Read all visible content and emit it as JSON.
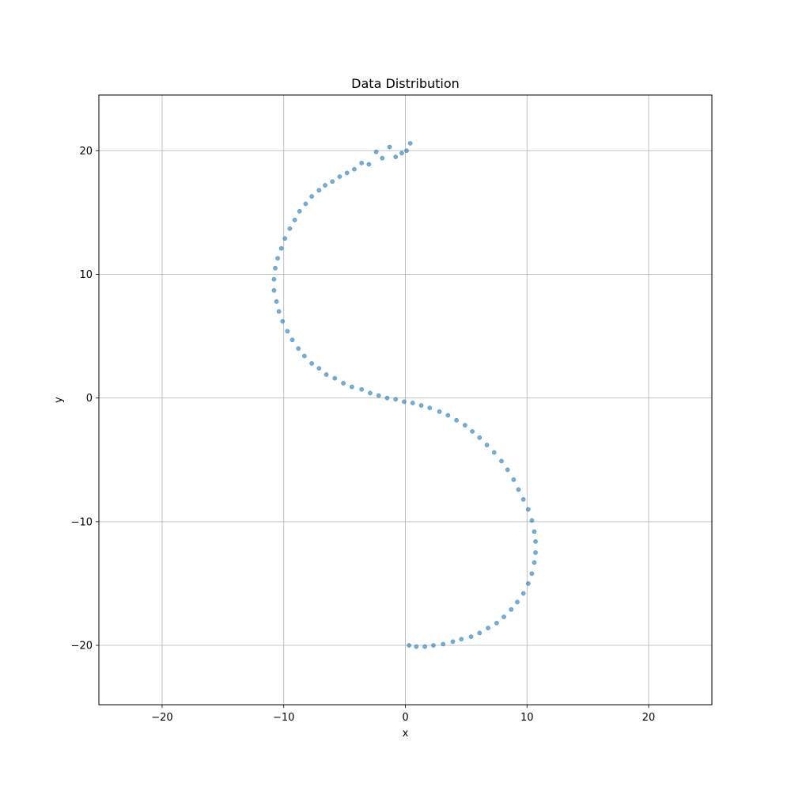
{
  "chart_data": {
    "type": "scatter",
    "title": "Data Distribution",
    "xlabel": "x",
    "ylabel": "y",
    "xlim": [
      -25.2,
      25.2
    ],
    "ylim": [
      -24.8,
      24.5
    ],
    "xticks": [
      -20,
      -10,
      0,
      10,
      20
    ],
    "yticks": [
      -20,
      -10,
      0,
      10,
      20
    ],
    "xtick_labels": [
      "−20",
      "−10",
      "0",
      "10",
      "20"
    ],
    "ytick_labels": [
      "−20",
      "−10",
      "0",
      "10",
      "20"
    ],
    "grid": true,
    "legend": "none",
    "point_color": "#1f77b4",
    "point_alpha": 0.6,
    "series": [
      {
        "x": [
          0.1,
          -0.3,
          0.4,
          -0.8,
          -1.3,
          -1.9,
          -2.4,
          -3.0,
          -3.6,
          -4.2,
          -4.8,
          -5.4,
          -6.0,
          -6.6,
          -7.1,
          -7.7,
          -8.2,
          -8.7,
          -9.1,
          -9.5,
          -9.9,
          -10.2,
          -10.5,
          -10.7,
          -10.8,
          -10.8,
          -10.6,
          -10.4,
          -10.1,
          -9.7,
          -9.3,
          -8.8,
          -8.3,
          -7.7,
          -7.1,
          -6.5,
          -5.8,
          -5.1,
          -4.4,
          -3.6,
          -2.9,
          -2.2,
          -1.5,
          -0.8,
          -0.1,
          0.6,
          1.3,
          2.0,
          2.8,
          3.5,
          4.2,
          4.9,
          5.5,
          6.1,
          6.7,
          7.3,
          7.9,
          8.4,
          8.9,
          9.3,
          9.7,
          10.1,
          10.4,
          10.6,
          10.7,
          10.7,
          10.6,
          10.4,
          10.1,
          9.7,
          9.2,
          8.7,
          8.1,
          7.5,
          6.8,
          6.1,
          5.4,
          4.6,
          3.9,
          3.1,
          2.3,
          1.6,
          0.9,
          0.3
        ],
        "y": [
          20.0,
          19.8,
          20.6,
          19.5,
          20.3,
          19.4,
          19.9,
          18.9,
          19.0,
          18.5,
          18.2,
          17.9,
          17.5,
          17.2,
          16.8,
          16.3,
          15.7,
          15.1,
          14.4,
          13.7,
          12.9,
          12.1,
          11.3,
          10.5,
          9.6,
          8.7,
          7.8,
          7.0,
          6.2,
          5.4,
          4.7,
          4.0,
          3.4,
          2.8,
          2.4,
          1.9,
          1.6,
          1.2,
          0.9,
          0.7,
          0.4,
          0.2,
          0.0,
          -0.1,
          -0.3,
          -0.4,
          -0.6,
          -0.8,
          -1.1,
          -1.4,
          -1.8,
          -2.2,
          -2.7,
          -3.2,
          -3.8,
          -4.4,
          -5.1,
          -5.8,
          -6.6,
          -7.4,
          -8.2,
          -9.0,
          -9.9,
          -10.8,
          -11.6,
          -12.5,
          -13.3,
          -14.2,
          -15.0,
          -15.8,
          -16.5,
          -17.1,
          -17.7,
          -18.2,
          -18.6,
          -19.0,
          -19.3,
          -19.5,
          -19.7,
          -19.9,
          -20.0,
          -20.1,
          -20.1,
          -20.0
        ]
      }
    ]
  }
}
